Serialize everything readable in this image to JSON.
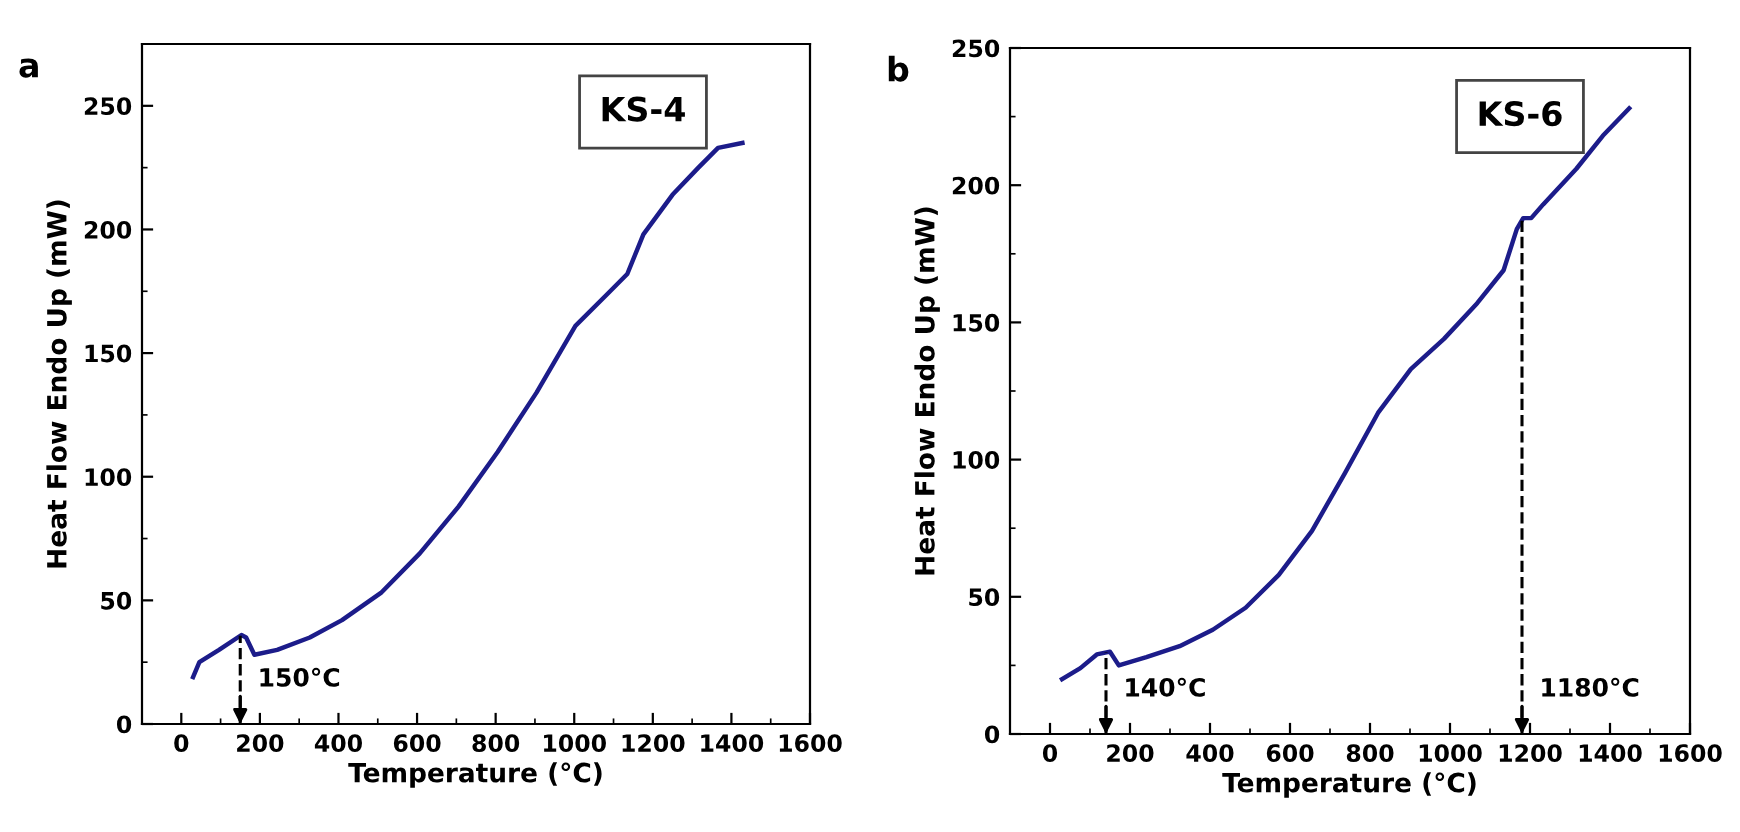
{
  "chart_data": [
    {
      "type": "line",
      "title": "KS-4",
      "xlabel": "Temperature (°C)",
      "ylabel": "Heat Flow Endo Up (mW)",
      "annotations": [
        "a"
      ],
      "ref_lines": [
        {
          "axis": "x",
          "value": 150,
          "label": "150°C",
          "line_style": "dashed",
          "color": "#000000"
        }
      ],
      "series": [
        {
          "color": "#1c1c8a",
          "x": [
            30,
            46,
            96,
            153,
            165,
            186,
            244,
            327,
            409,
            508,
            607,
            706,
            805,
            904,
            1003,
            1085,
            1135,
            1176,
            1250,
            1316,
            1366,
            1428
          ],
          "values": [
            19,
            25,
            30,
            36,
            35,
            28,
            30,
            35,
            42,
            53,
            69,
            88,
            110,
            134,
            161,
            174,
            182,
            198,
            214,
            225,
            233,
            235
          ]
        }
      ],
      "xlim": [
        -100,
        1600
      ],
      "xticks": [
        0,
        200,
        400,
        600,
        800,
        1000,
        1200,
        1400,
        1600
      ],
      "ylim": [
        0,
        275
      ],
      "yticks": [
        0,
        50,
        100,
        150,
        200,
        250
      ],
      "grid": false,
      "legend": false,
      "marker": "none",
      "line_style": "solid"
    },
    {
      "type": "line",
      "title": "KS-6",
      "xlabel": "Temperature (°C)",
      "ylabel": "Heat Flow Endo Up (mW)",
      "annotations": [
        "b"
      ],
      "ref_lines": [
        {
          "axis": "x",
          "value": 140,
          "label": "140°C",
          "line_style": "dashed",
          "color": "#000000"
        },
        {
          "axis": "x",
          "value": 1180,
          "label": "1180°C",
          "line_style": "dashed",
          "color": "#000000"
        }
      ],
      "series": [
        {
          "color": "#1c1c8a",
          "x": [
            30,
            76,
            117,
            150,
            172,
            241,
            324,
            407,
            489,
            572,
            655,
            737,
            820,
            902,
            985,
            1068,
            1134,
            1167,
            1183,
            1203,
            1233,
            1316,
            1382,
            1448
          ],
          "values": [
            20,
            24,
            29,
            30,
            25,
            28,
            32,
            38,
            46,
            58,
            74,
            95,
            117,
            133,
            144,
            157,
            169,
            184,
            188,
            188,
            193,
            206,
            218,
            228
          ]
        }
      ],
      "xlim": [
        -100,
        1600
      ],
      "xticks": [
        0,
        200,
        400,
        600,
        800,
        1000,
        1200,
        1400,
        1600
      ],
      "ylim": [
        0,
        250
      ],
      "yticks": [
        0,
        50,
        100,
        150,
        200,
        250
      ],
      "grid": false,
      "legend": false,
      "marker": "none",
      "line_style": "solid"
    }
  ]
}
